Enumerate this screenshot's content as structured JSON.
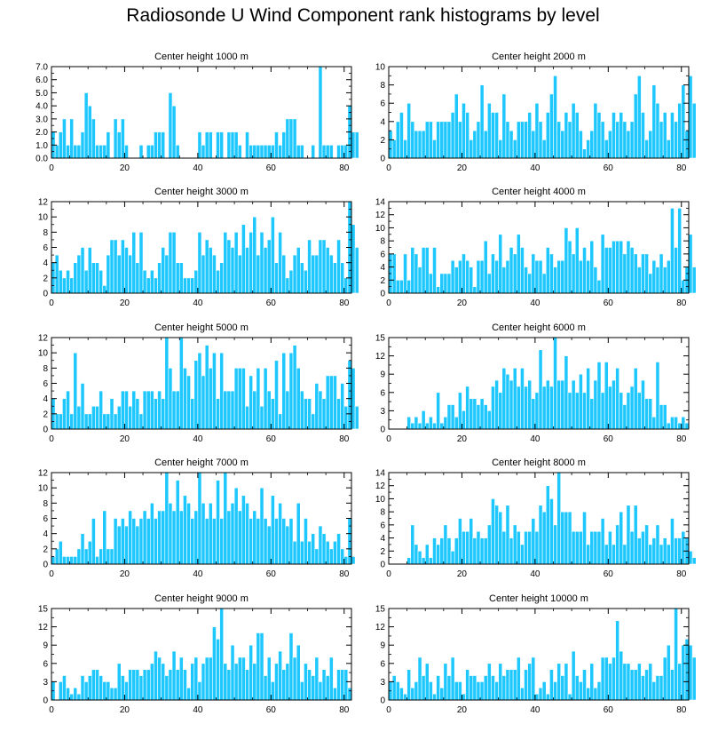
{
  "title": "Radiosonde U Wind Component rank histograms by level",
  "colors": {
    "bar": "#1ec8ff",
    "bar_edge": "#ffffff",
    "axis": "#000000"
  },
  "chart_data": [
    {
      "type": "bar",
      "title": "Center height 1000 m",
      "xlim": [
        0,
        82
      ],
      "ylim": [
        0,
        7
      ],
      "yticks": [
        0,
        1,
        2,
        3,
        4,
        5,
        6,
        7
      ],
      "ytick_labels": [
        "0.0",
        "1.0",
        "2.0",
        "3.0",
        "4.0",
        "5.0",
        "6.0",
        "7.0"
      ],
      "xticks": [
        0,
        20,
        40,
        60,
        80
      ],
      "xtick_labels": [
        "0",
        "20",
        "40",
        "60",
        "80"
      ],
      "values": [
        2,
        1,
        2,
        3,
        1,
        3,
        1,
        1,
        2,
        5,
        4,
        3,
        1,
        1,
        1,
        2,
        0,
        3,
        2,
        3,
        1,
        0,
        0,
        0,
        1,
        0,
        1,
        1,
        2,
        2,
        2,
        0,
        5,
        4,
        1,
        0,
        0,
        0,
        0,
        0,
        2,
        1,
        2,
        2,
        0,
        2,
        2,
        0,
        2,
        2,
        2,
        1,
        0,
        2,
        1,
        1,
        1,
        1,
        1,
        1,
        1,
        2,
        1,
        2,
        3,
        3,
        3,
        1,
        1,
        0,
        0,
        1,
        0,
        7,
        1,
        1,
        1,
        0,
        1,
        1,
        1,
        4,
        2,
        2
      ]
    },
    {
      "type": "bar",
      "title": "Center height 2000 m",
      "xlim": [
        0,
        82
      ],
      "ylim": [
        0,
        10
      ],
      "yticks": [
        0,
        2,
        4,
        6,
        8,
        10
      ],
      "ytick_labels": [
        "0",
        "2",
        "4",
        "6",
        "8",
        "10"
      ],
      "xticks": [
        0,
        20,
        40,
        60,
        80
      ],
      "xtick_labels": [
        "0",
        "20",
        "40",
        "60",
        "80"
      ],
      "values": [
        3,
        2,
        4,
        5,
        2,
        6,
        4,
        3,
        3,
        3,
        4,
        4,
        2,
        4,
        4,
        4,
        4,
        5,
        7,
        4,
        6,
        5,
        2,
        3,
        4,
        8,
        3,
        6,
        5,
        5,
        2,
        7,
        4,
        3,
        2,
        4,
        4,
        4,
        5,
        3,
        6,
        4,
        2,
        5,
        7,
        9,
        4,
        3,
        5,
        4,
        6,
        5,
        3,
        1,
        2,
        3,
        6,
        5,
        4,
        2,
        3,
        5,
        4,
        5,
        4,
        3,
        4,
        7,
        9,
        5,
        2,
        3,
        8,
        6,
        4,
        5,
        2,
        5,
        4,
        6,
        8,
        3,
        9,
        6
      ]
    },
    {
      "type": "bar",
      "title": "Center height 3000 m",
      "xlim": [
        0,
        82
      ],
      "ylim": [
        0,
        12
      ],
      "yticks": [
        0,
        2,
        4,
        6,
        8,
        10,
        12
      ],
      "ytick_labels": [
        "0",
        "2",
        "4",
        "6",
        "8",
        "10",
        "12"
      ],
      "xticks": [
        0,
        20,
        40,
        60,
        80
      ],
      "xtick_labels": [
        "0",
        "20",
        "40",
        "60",
        "80"
      ],
      "values": [
        4,
        5,
        3,
        2,
        3,
        2,
        4,
        5,
        6,
        3,
        6,
        4,
        4,
        3,
        1,
        5,
        7,
        7,
        5,
        7,
        6,
        5,
        8,
        4,
        8,
        3,
        2,
        3,
        2,
        4,
        6,
        5,
        8,
        8,
        4,
        4,
        2,
        2,
        2,
        3,
        8,
        5,
        7,
        6,
        5,
        3,
        4,
        8,
        7,
        6,
        8,
        5,
        9,
        6,
        8,
        10,
        5,
        8,
        6,
        7,
        10,
        4,
        8,
        5,
        2,
        3,
        5,
        6,
        4,
        3,
        7,
        5,
        5,
        7,
        7,
        6,
        5,
        4,
        7,
        4,
        2,
        12,
        9,
        6
      ]
    },
    {
      "type": "bar",
      "title": "Center height 4000 m",
      "xlim": [
        0,
        82
      ],
      "ylim": [
        0,
        14
      ],
      "yticks": [
        0,
        2,
        4,
        6,
        8,
        10,
        12,
        14
      ],
      "ytick_labels": [
        "0",
        "2",
        "4",
        "6",
        "8",
        "10",
        "12",
        "14"
      ],
      "xticks": [
        0,
        20,
        40,
        60,
        80
      ],
      "xtick_labels": [
        "0",
        "20",
        "40",
        "60",
        "80"
      ],
      "values": [
        6,
        6,
        2,
        2,
        6,
        2,
        7,
        6,
        4,
        7,
        7,
        3,
        7,
        1,
        3,
        3,
        3,
        5,
        4,
        5,
        6,
        5,
        4,
        1,
        5,
        5,
        8,
        3,
        6,
        5,
        9,
        4,
        5,
        7,
        6,
        9,
        7,
        4,
        3,
        6,
        5,
        5,
        3,
        7,
        6,
        4,
        5,
        5,
        10,
        8,
        6,
        10,
        5,
        7,
        5,
        8,
        4,
        2,
        9,
        7,
        7,
        8,
        8,
        8,
        6,
        8,
        7,
        6,
        4,
        6,
        6,
        3,
        5,
        4,
        6,
        4,
        5,
        13,
        7,
        13,
        2,
        4,
        9,
        4
      ]
    },
    {
      "type": "bar",
      "title": "Center height 5000 m",
      "xlim": [
        0,
        82
      ],
      "ylim": [
        0,
        12
      ],
      "yticks": [
        0,
        2,
        4,
        6,
        8,
        10,
        12
      ],
      "ytick_labels": [
        "0",
        "2",
        "4",
        "6",
        "8",
        "10",
        "12"
      ],
      "xticks": [
        0,
        20,
        40,
        60,
        80
      ],
      "xtick_labels": [
        "0",
        "20",
        "40",
        "60",
        "80"
      ],
      "values": [
        4,
        2,
        2,
        4,
        5,
        2,
        10,
        3,
        6,
        2,
        2,
        3,
        3,
        5,
        2,
        2,
        4,
        2,
        3,
        5,
        5,
        3,
        5,
        4,
        2,
        5,
        5,
        5,
        4,
        5,
        4,
        12,
        8,
        5,
        5,
        12,
        8,
        7,
        4,
        9,
        10,
        7,
        11,
        8,
        10,
        4,
        10,
        5,
        5,
        5,
        8,
        8,
        8,
        3,
        7,
        5,
        8,
        3,
        8,
        5,
        4,
        9,
        2,
        10,
        5,
        10,
        11,
        8,
        5,
        4,
        4,
        2,
        6,
        5,
        4,
        7,
        7,
        7,
        4,
        6,
        3,
        9,
        8,
        3
      ]
    },
    {
      "type": "bar",
      "title": "Center height 6000 m",
      "xlim": [
        0,
        82
      ],
      "ylim": [
        0,
        15
      ],
      "yticks": [
        0,
        3,
        6,
        9,
        12,
        15
      ],
      "ytick_labels": [
        "0",
        "3",
        "6",
        "9",
        "12",
        "15"
      ],
      "xticks": [
        0,
        20,
        40,
        60,
        80
      ],
      "xtick_labels": [
        "0",
        "20",
        "40",
        "60",
        "80"
      ],
      "values": [
        0,
        0,
        0,
        0,
        0,
        2,
        1,
        2,
        1,
        3,
        1,
        2,
        1,
        6,
        1,
        2,
        4,
        4,
        2,
        6,
        3,
        7,
        5,
        5,
        4,
        5,
        4,
        3,
        7,
        8,
        6,
        10,
        9,
        8,
        10,
        7,
        10,
        7,
        8,
        5,
        6,
        13,
        7,
        8,
        7,
        15,
        8,
        8,
        12,
        6,
        8,
        6,
        9,
        6,
        10,
        5,
        8,
        11,
        6,
        11,
        7,
        8,
        10,
        6,
        4,
        6,
        7,
        10,
        6,
        8,
        5,
        5,
        2,
        11,
        4,
        4,
        1,
        2,
        2,
        1,
        2,
        1,
        0,
        0
      ]
    },
    {
      "type": "bar",
      "title": "Center height 7000 m",
      "xlim": [
        0,
        82
      ],
      "ylim": [
        0,
        12
      ],
      "yticks": [
        0,
        2,
        4,
        6,
        8,
        10,
        12
      ],
      "ytick_labels": [
        "0",
        "2",
        "4",
        "6",
        "8",
        "10",
        "12"
      ],
      "xticks": [
        0,
        20,
        40,
        60,
        80
      ],
      "xtick_labels": [
        "0",
        "20",
        "40",
        "60",
        "80"
      ],
      "values": [
        1,
        2,
        3,
        1,
        1,
        1,
        1,
        2,
        4,
        2,
        3,
        6,
        1,
        2,
        7,
        2,
        2,
        6,
        5,
        6,
        5,
        7,
        6,
        5,
        6,
        7,
        6,
        8,
        6,
        7,
        7,
        12,
        8,
        7,
        11,
        7,
        9,
        8,
        6,
        7,
        12,
        8,
        6,
        8,
        6,
        11,
        6,
        12,
        7,
        8,
        10,
        7,
        9,
        8,
        6,
        7,
        6,
        10,
        6,
        5,
        9,
        6,
        8,
        6,
        5,
        6,
        3,
        8,
        3,
        6,
        3,
        4,
        2,
        5,
        4,
        3,
        2,
        3,
        4,
        2,
        1,
        6,
        1,
        0
      ]
    },
    {
      "type": "bar",
      "title": "Center height 8000 m",
      "xlim": [
        0,
        82
      ],
      "ylim": [
        0,
        14
      ],
      "yticks": [
        0,
        2,
        4,
        6,
        8,
        10,
        12,
        14
      ],
      "ytick_labels": [
        "0",
        "2",
        "4",
        "6",
        "8",
        "10",
        "12",
        "14"
      ],
      "xticks": [
        0,
        20,
        40,
        60,
        80
      ],
      "xtick_labels": [
        "0",
        "20",
        "40",
        "60",
        "80"
      ],
      "values": [
        0,
        0,
        0,
        0,
        0,
        1,
        6,
        3,
        2,
        1,
        3,
        1,
        4,
        3,
        4,
        6,
        4,
        2,
        4,
        7,
        5,
        5,
        7,
        4,
        5,
        4,
        4,
        6,
        10,
        9,
        8,
        5,
        9,
        4,
        6,
        5,
        3,
        5,
        5,
        7,
        5,
        9,
        8,
        12,
        10,
        6,
        14,
        8,
        8,
        8,
        5,
        5,
        5,
        8,
        3,
        5,
        5,
        5,
        7,
        3,
        5,
        3,
        6,
        8,
        3,
        9,
        5,
        9,
        4,
        5,
        6,
        3,
        4,
        6,
        3,
        4,
        3,
        7,
        4,
        4,
        5,
        4,
        2,
        1
      ]
    },
    {
      "type": "bar",
      "title": "Center height 9000 m",
      "xlim": [
        0,
        82
      ],
      "ylim": [
        0,
        15
      ],
      "yticks": [
        0,
        3,
        6,
        9,
        12,
        15
      ],
      "ytick_labels": [
        "0",
        "3",
        "6",
        "9",
        "12",
        "15"
      ],
      "xticks": [
        0,
        20,
        40,
        60,
        80
      ],
      "xtick_labels": [
        "0",
        "20",
        "40",
        "60",
        "80"
      ],
      "values": [
        3,
        0,
        3,
        4,
        2,
        1,
        2,
        1,
        4,
        3,
        4,
        5,
        5,
        4,
        3,
        3,
        2,
        2,
        6,
        4,
        3,
        5,
        5,
        5,
        4,
        5,
        5,
        6,
        8,
        7,
        6,
        4,
        5,
        8,
        5,
        7,
        5,
        2,
        6,
        7,
        3,
        6,
        7,
        7,
        12,
        10,
        15,
        6,
        5,
        9,
        6,
        7,
        7,
        5,
        9,
        6,
        11,
        11,
        4,
        7,
        3,
        6,
        8,
        5,
        6,
        11,
        7,
        9,
        3,
        6,
        5,
        4,
        7,
        3,
        5,
        4,
        7,
        2,
        5,
        5,
        5,
        2,
        0,
        0
      ]
    },
    {
      "type": "bar",
      "title": "Center height 10000 m",
      "xlim": [
        0,
        82
      ],
      "ylim": [
        0,
        15
      ],
      "yticks": [
        0,
        3,
        6,
        9,
        12,
        15
      ],
      "ytick_labels": [
        "0",
        "3",
        "6",
        "9",
        "12",
        "15"
      ],
      "xticks": [
        0,
        20,
        40,
        60,
        80
      ],
      "xtick_labels": [
        "0",
        "20",
        "40",
        "60",
        "80"
      ],
      "values": [
        3,
        4,
        3,
        2,
        1,
        5,
        2,
        3,
        7,
        4,
        6,
        3,
        1,
        4,
        2,
        6,
        4,
        7,
        3,
        3,
        1,
        5,
        4,
        4,
        3,
        3,
        4,
        6,
        4,
        3,
        6,
        4,
        5,
        5,
        5,
        7,
        2,
        5,
        6,
        7,
        1,
        2,
        3,
        1,
        5,
        3,
        6,
        4,
        6,
        1,
        8,
        4,
        3,
        5,
        2,
        6,
        2,
        3,
        7,
        7,
        6,
        7,
        13,
        8,
        6,
        6,
        5,
        5,
        6,
        4,
        5,
        6,
        3,
        4,
        4,
        7,
        9,
        5,
        15,
        6,
        9,
        10,
        9,
        7
      ]
    }
  ]
}
